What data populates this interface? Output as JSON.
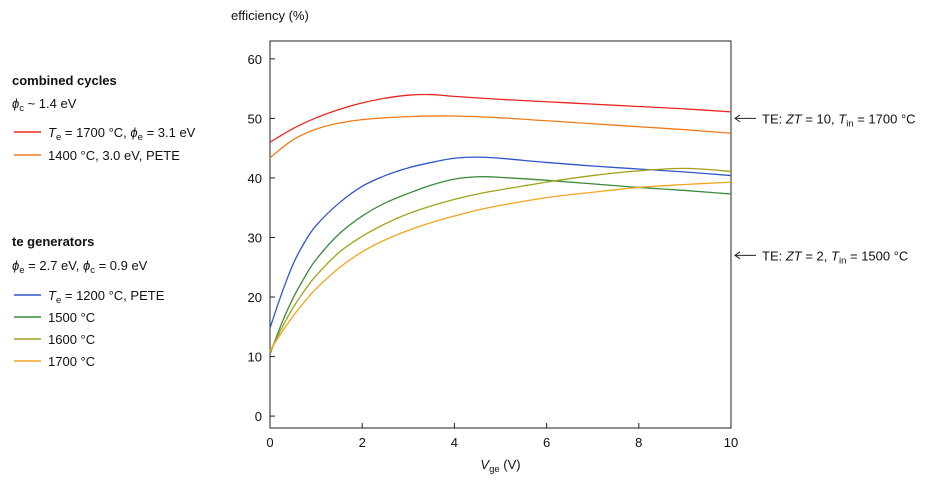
{
  "chart_data": {
    "type": "line",
    "ylabel": "efficiency  (%)",
    "xlabel_var": "V",
    "xlabel_sub": "ge",
    "xlabel_unit": "  (V)",
    "xlim": [
      0,
      10
    ],
    "ylim": [
      -2,
      63
    ],
    "xticks": [
      0,
      2,
      4,
      6,
      8,
      10
    ],
    "yticks": [
      0,
      10,
      20,
      30,
      40,
      50,
      60
    ],
    "grid": false,
    "series": [
      {
        "group": "combined",
        "color": "#e8261f",
        "x": [
          0,
          0.5,
          1,
          1.5,
          2,
          2.5,
          3,
          3.5,
          4,
          5,
          6,
          7,
          8,
          9,
          10
        ],
        "y": [
          46.0,
          48.3,
          50.1,
          51.5,
          52.6,
          53.4,
          53.9,
          54.0,
          53.7,
          53.2,
          52.8,
          52.4,
          52.0,
          51.6,
          51.1
        ]
      },
      {
        "group": "combined",
        "color": "#ef7b1a",
        "x": [
          0,
          0.5,
          1,
          1.5,
          2,
          3,
          4,
          5,
          6,
          7,
          8,
          9,
          10
        ],
        "y": [
          43.4,
          46.4,
          48.2,
          49.2,
          49.8,
          50.3,
          50.4,
          50.1,
          49.6,
          49.1,
          48.6,
          48.1,
          47.5
        ]
      },
      {
        "group": "te",
        "color": "#2d57c8",
        "x": [
          0,
          0.25,
          0.5,
          0.75,
          1,
          1.5,
          2,
          2.5,
          3,
          3.5,
          4,
          4.5,
          5,
          6,
          7,
          8,
          9,
          10
        ],
        "y": [
          14.8,
          20.5,
          25.5,
          29.2,
          32.0,
          35.8,
          38.6,
          40.4,
          41.7,
          42.6,
          43.3,
          43.5,
          43.3,
          42.6,
          42.0,
          41.5,
          41.0,
          40.4
        ]
      },
      {
        "group": "te",
        "color": "#3b8a3b",
        "x": [
          0,
          0.25,
          0.5,
          0.75,
          1,
          1.5,
          2,
          2.5,
          3,
          3.5,
          4,
          4.5,
          5,
          6,
          7,
          8,
          9,
          10
        ],
        "y": [
          10.4,
          15.5,
          19.8,
          23.3,
          26.3,
          30.6,
          33.6,
          35.8,
          37.4,
          38.8,
          39.8,
          40.2,
          40.1,
          39.6,
          39.0,
          38.4,
          37.9,
          37.3
        ]
      },
      {
        "group": "te",
        "color": "#a2a11b",
        "x": [
          0,
          0.25,
          0.5,
          0.75,
          1,
          1.5,
          2,
          2.5,
          3,
          3.5,
          4,
          4.5,
          5,
          6,
          7,
          8,
          9,
          10
        ],
        "y": [
          10.7,
          14.7,
          18.2,
          21.1,
          23.6,
          27.5,
          30.2,
          32.3,
          34.0,
          35.3,
          36.4,
          37.3,
          38.0,
          39.3,
          40.4,
          41.2,
          41.6,
          41.1
        ]
      },
      {
        "group": "te",
        "color": "#f1a520",
        "x": [
          0,
          0.25,
          0.5,
          0.75,
          1,
          1.5,
          2,
          2.5,
          3,
          3.5,
          4,
          4.5,
          5,
          6,
          7,
          8,
          9,
          10
        ],
        "y": [
          11.0,
          14.0,
          16.8,
          19.2,
          21.4,
          24.9,
          27.6,
          29.6,
          31.2,
          32.5,
          33.6,
          34.6,
          35.4,
          36.7,
          37.6,
          38.4,
          38.9,
          39.3
        ]
      }
    ],
    "annotations": [
      {
        "y": 50,
        "prefix": "TE: ",
        "zt": "ZT",
        "zt_val": " = 10, ",
        "t": "T",
        "t_sub": "in",
        "t_val": " = 1700 °C"
      },
      {
        "y": 27,
        "prefix": "TE: ",
        "zt": "ZT",
        "zt_val": " = 2, ",
        "t": "T",
        "t_sub": "in",
        "t_val": " = 1500 °C"
      }
    ]
  },
  "legend": {
    "combined": {
      "title": "combined cycles",
      "param_sym": "ϕ",
      "param_sub": "c",
      "param_val": " ~ 1.4 eV",
      "items": [
        {
          "color": "#e8261f",
          "parts": [
            [
              "T",
              "i"
            ],
            [
              "e",
              "sub"
            ],
            [
              " = 1700 °C, ",
              ""
            ],
            [
              "ϕ",
              "i"
            ],
            [
              "e",
              "sub"
            ],
            [
              " = 3.1 eV",
              ""
            ]
          ]
        },
        {
          "color": "#ef7b1a",
          "parts": [
            [
              "1400 °C, 3.0 eV, PETE",
              ""
            ]
          ]
        }
      ]
    },
    "te": {
      "title": "te generators",
      "param_parts": [
        [
          "ϕ",
          "i"
        ],
        [
          "e",
          "sub"
        ],
        [
          " = 2.7 eV, ",
          ""
        ],
        [
          "ϕ",
          "i"
        ],
        [
          "c",
          "sub"
        ],
        [
          " = 0.9 eV",
          ""
        ]
      ],
      "items": [
        {
          "color": "#2d57c8",
          "parts": [
            [
              "T",
              "i"
            ],
            [
              "e",
              "sub"
            ],
            [
              " = 1200 °C, PETE",
              ""
            ]
          ]
        },
        {
          "color": "#3b8a3b",
          "parts": [
            [
              "1500 °C",
              ""
            ]
          ]
        },
        {
          "color": "#a2a11b",
          "parts": [
            [
              "1600 °C",
              ""
            ]
          ]
        },
        {
          "color": "#f1a520",
          "parts": [
            [
              "1700 °C",
              ""
            ]
          ]
        }
      ]
    }
  }
}
